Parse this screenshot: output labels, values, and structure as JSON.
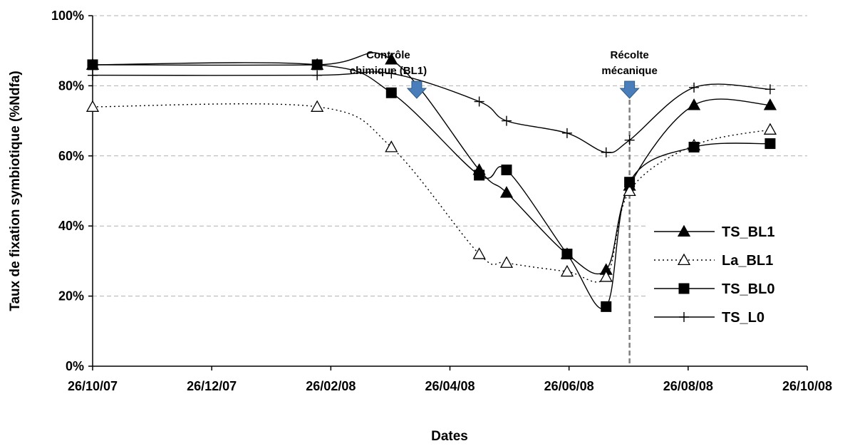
{
  "chart_data": {
    "type": "line",
    "xlabel": "Dates",
    "ylabel": "Taux de fixation symbiotique (%Ndfa)",
    "x_tick_labels": [
      "26/10/07",
      "26/12/07",
      "26/02/08",
      "26/04/08",
      "26/06/08",
      "26/08/08",
      "26/10/08"
    ],
    "x_range": [
      "2007-10-26",
      "2008-10-26"
    ],
    "y_tick_labels": [
      "0%",
      "20%",
      "40%",
      "60%",
      "80%",
      "100%"
    ],
    "ylim": [
      0,
      100
    ],
    "y_unit": "%",
    "grid": "horizontal dashed",
    "legend_position": "right",
    "series": [
      {
        "name": "TS_BL1",
        "marker": "filled-triangle",
        "line": "solid",
        "points": [
          {
            "x": "2007-10-26",
            "y": 86
          },
          {
            "x": "2008-02-18",
            "y": 86
          },
          {
            "x": "2008-03-27",
            "y": 87.5
          },
          {
            "x": "2008-05-11",
            "y": 56
          },
          {
            "x": "2008-05-25",
            "y": 49.5
          },
          {
            "x": "2008-06-25",
            "y": 32
          },
          {
            "x": "2008-07-15",
            "y": 27.5
          },
          {
            "x": "2008-07-27",
            "y": 51.5
          },
          {
            "x": "2008-08-29",
            "y": 74.5
          },
          {
            "x": "2008-10-07",
            "y": 74.5
          }
        ]
      },
      {
        "name": "La_BL1",
        "marker": "open-triangle",
        "line": "dotted",
        "points": [
          {
            "x": "2007-10-26",
            "y": 74
          },
          {
            "x": "2008-02-18",
            "y": 74
          },
          {
            "x": "2008-03-27",
            "y": 62.5
          },
          {
            "x": "2008-05-11",
            "y": 32
          },
          {
            "x": "2008-05-25",
            "y": 29.5
          },
          {
            "x": "2008-06-25",
            "y": 27
          },
          {
            "x": "2008-07-15",
            "y": 25.5
          },
          {
            "x": "2008-07-27",
            "y": 50
          },
          {
            "x": "2008-08-29",
            "y": 63
          },
          {
            "x": "2008-10-07",
            "y": 67.5
          }
        ]
      },
      {
        "name": "TS_BL0",
        "marker": "filled-square",
        "line": "solid",
        "points": [
          {
            "x": "2007-10-26",
            "y": 86
          },
          {
            "x": "2008-02-18",
            "y": 86
          },
          {
            "x": "2008-03-27",
            "y": 78
          },
          {
            "x": "2008-05-11",
            "y": 54.5
          },
          {
            "x": "2008-05-25",
            "y": 56
          },
          {
            "x": "2008-06-25",
            "y": 32
          },
          {
            "x": "2008-07-15",
            "y": 17
          },
          {
            "x": "2008-07-27",
            "y": 52.5
          },
          {
            "x": "2008-08-29",
            "y": 62.5
          },
          {
            "x": "2008-10-07",
            "y": 63.5
          }
        ]
      },
      {
        "name": "TS_L0",
        "marker": "plus",
        "line": "solid",
        "points": [
          {
            "x": "2007-10-26",
            "y": 83
          },
          {
            "x": "2008-02-18",
            "y": 83
          },
          {
            "x": "2008-03-27",
            "y": 83.5
          },
          {
            "x": "2008-05-11",
            "y": 75.5
          },
          {
            "x": "2008-05-25",
            "y": 70
          },
          {
            "x": "2008-06-25",
            "y": 66.5
          },
          {
            "x": "2008-07-15",
            "y": 61
          },
          {
            "x": "2008-07-27",
            "y": 64.5
          },
          {
            "x": "2008-08-29",
            "y": 79.5
          },
          {
            "x": "2008-10-07",
            "y": 79
          }
        ]
      }
    ],
    "annotations": [
      {
        "id": "controle",
        "lines": [
          "Contrôle",
          "chimique (BL1)"
        ],
        "x": "2008-04-09",
        "arrow_color": "#4a7ebb"
      },
      {
        "id": "recolte",
        "lines": [
          "Récolte",
          "mécanique"
        ],
        "x": "2008-07-27",
        "arrow_color": "#4a7ebb",
        "vertical_line": true
      }
    ]
  }
}
